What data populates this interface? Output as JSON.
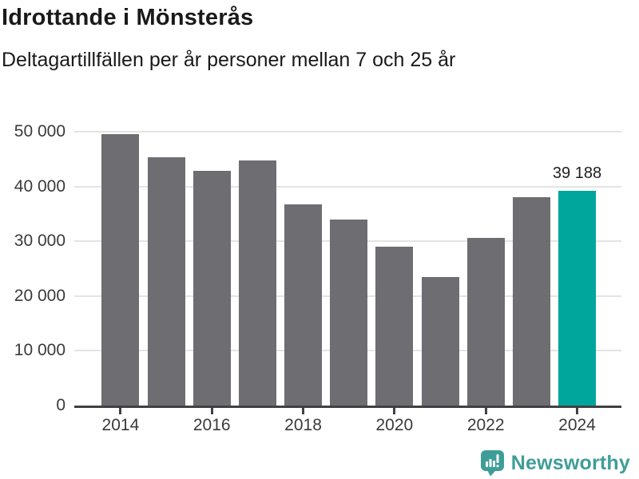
{
  "header": {
    "title": "Idrottande i Mönsterås",
    "subtitle": "Deltagartillfällen per år personer mellan 7 och 25 år"
  },
  "chart_data": {
    "type": "bar",
    "title": "Idrottande i Mönsterås",
    "subtitle": "Deltagartillfällen per år personer mellan 7 och 25 år",
    "categories": [
      "2014",
      "2015",
      "2016",
      "2017",
      "2018",
      "2019",
      "2020",
      "2021",
      "2022",
      "2023",
      "2024"
    ],
    "values": [
      49500,
      45300,
      42900,
      44800,
      36800,
      33900,
      29000,
      23400,
      30600,
      38100,
      39188
    ],
    "highlight_index": 10,
    "annotation": {
      "index": 10,
      "text": "39 188"
    },
    "ylim": [
      0,
      50000
    ],
    "yticks": [
      {
        "value": 0,
        "label": "0"
      },
      {
        "value": 10000,
        "label": "10 000"
      },
      {
        "value": 20000,
        "label": "20 000"
      },
      {
        "value": 30000,
        "label": "30 000"
      },
      {
        "value": 40000,
        "label": "40 000"
      },
      {
        "value": 50000,
        "label": "50 000"
      }
    ],
    "xticks": [
      {
        "index": 0,
        "label": "2014"
      },
      {
        "index": 2,
        "label": "2016"
      },
      {
        "index": 4,
        "label": "2018"
      },
      {
        "index": 6,
        "label": "2020"
      },
      {
        "index": 8,
        "label": "2022"
      },
      {
        "index": 10,
        "label": "2024"
      }
    ],
    "grid": "horizontal",
    "legend": "none",
    "colors": {
      "bar": "#6E6D72",
      "highlight": "#00A59B",
      "grid": "#E4E4E4",
      "axis": "#414042",
      "text": "#1A1A1A",
      "tick_text": "#3A3A3A",
      "brand": "#3F9D97"
    }
  },
  "footer": {
    "brand": "Newsworthy",
    "logo_icon": "bar-chart-speech-bubble-icon"
  }
}
